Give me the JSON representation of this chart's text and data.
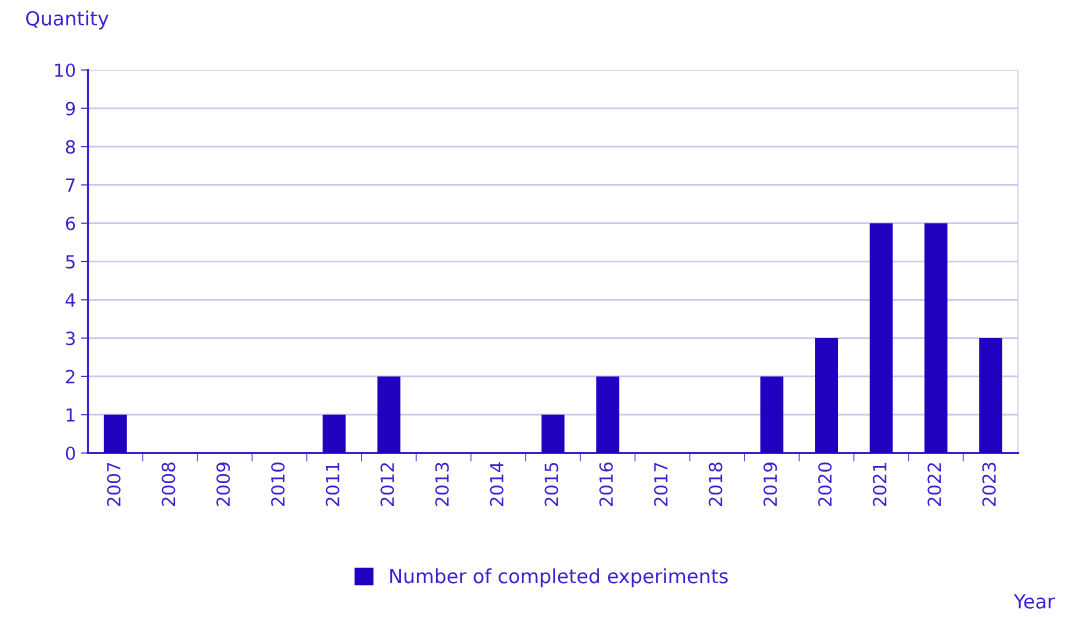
{
  "chart_data": {
    "type": "bar",
    "ylabel": "Quantity",
    "xlabel": "Year",
    "categories": [
      "2007",
      "2008",
      "2009",
      "2010",
      "2011",
      "2012",
      "2013",
      "2014",
      "2015",
      "2016",
      "2017",
      "2018",
      "2019",
      "2020",
      "2021",
      "2022",
      "2023"
    ],
    "series": [
      {
        "name": "Number of completed experiments",
        "color": "#2200c0",
        "values": [
          1,
          0,
          0,
          0,
          1,
          2,
          0,
          0,
          1,
          2,
          0,
          0,
          2,
          3,
          6,
          6,
          3
        ]
      }
    ],
    "ylim": [
      0,
      10
    ],
    "yticks": [
      0,
      1,
      2,
      3,
      4,
      5,
      6,
      7,
      8,
      9,
      10
    ],
    "grid": "y",
    "legend": "bottom"
  }
}
